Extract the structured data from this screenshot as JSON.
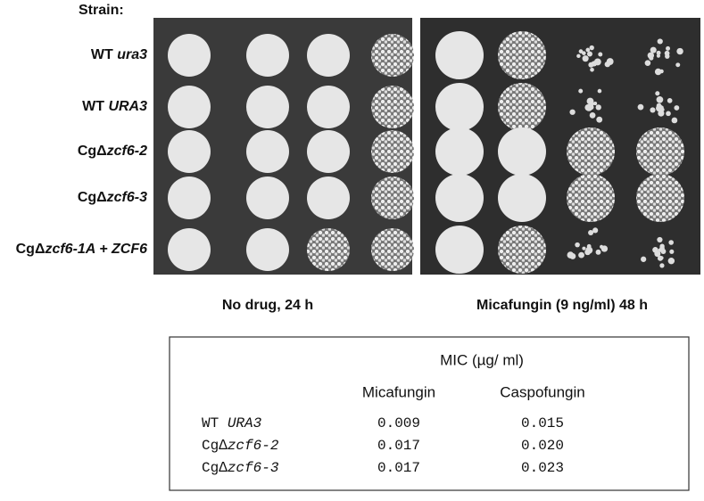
{
  "figure": {
    "strain_heading": "Strain:",
    "strains": [
      {
        "plain": "WT ",
        "italic": "ura3"
      },
      {
        "plain": "WT ",
        "italic": "URA3"
      },
      {
        "plain": "CgΔ",
        "italic": "zcf6-2"
      },
      {
        "plain": "CgΔ",
        "italic": "zcf6-3"
      },
      {
        "plain": "CgΔ",
        "italic": "zcf6-1A + ZCF6"
      }
    ],
    "conditions": [
      "No drug, 24 h",
      "Micafungin (9 ng/ml) 48 h"
    ]
  },
  "table": {
    "title": "MIC (µg/ ml)",
    "columns": [
      "Micafungin",
      "Caspofungin"
    ],
    "rows": [
      {
        "plain": "WT ",
        "italic": "URA3",
        "values": [
          "0.009",
          "0.015"
        ]
      },
      {
        "plain": "Cg∆",
        "italic": "zcf6-2",
        "values": [
          "0.017",
          "0.020"
        ]
      },
      {
        "plain": "Cg∆",
        "italic": "zcf6-3",
        "values": [
          "0.017",
          "0.023"
        ]
      }
    ]
  }
}
